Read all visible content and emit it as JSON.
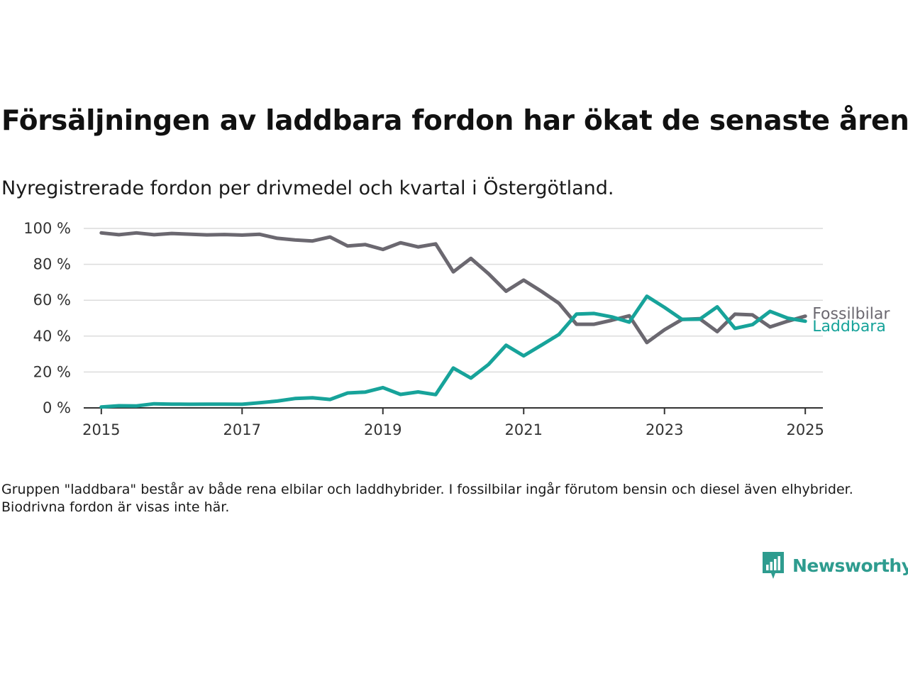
{
  "title": "Försäljningen av laddbara fordon har ökat de senaste åren",
  "subtitle": "Nyregistrerade fordon per drivmedel och kvartal i Östergötland.",
  "footnote": "Gruppen \"laddbara\" består av både rena elbilar och laddhybrider. I fossilbilar ingår förutom bensin och diesel även elhybrider. Biodrivna fordon är visas inte här.",
  "brand": {
    "name": "Newsworthy",
    "icon": "newsworthy-logo-icon",
    "color": "#2e9c8f"
  },
  "chart_data": {
    "type": "line",
    "title": "Försäljningen av laddbara fordon har ökat de senaste åren",
    "subtitle": "Nyregistrerade fordon per drivmedel och kvartal i Östergötland.",
    "xlabel": "",
    "ylabel": "",
    "xlim": [
      2014.75,
      2025.25
    ],
    "ylim": [
      0,
      100
    ],
    "grid": true,
    "x_ticks": [
      2015,
      2017,
      2019,
      2021,
      2023,
      2025
    ],
    "x_tick_labels": [
      "2015",
      "2017",
      "2019",
      "2021",
      "2023",
      "2025"
    ],
    "y_ticks": [
      0,
      20,
      40,
      60,
      80,
      100
    ],
    "y_tick_labels": [
      "0 %",
      "20 %",
      "40 %",
      "60 %",
      "80 %",
      "100 %"
    ],
    "x": [
      2015.0,
      2015.25,
      2015.5,
      2015.75,
      2016.0,
      2016.25,
      2016.5,
      2016.75,
      2017.0,
      2017.25,
      2017.5,
      2017.75,
      2018.0,
      2018.25,
      2018.5,
      2018.75,
      2019.0,
      2019.25,
      2019.5,
      2019.75,
      2020.0,
      2020.25,
      2020.5,
      2020.75,
      2021.0,
      2021.25,
      2021.5,
      2021.75,
      2022.0,
      2022.25,
      2022.5,
      2022.75,
      2023.0,
      2023.25,
      2023.5,
      2023.75,
      2024.0,
      2024.25,
      2024.5,
      2024.75,
      2025.0
    ],
    "series": [
      {
        "name": "Fossilbilar",
        "color": "#6b6870",
        "values": [
          97.5,
          96.5,
          97.5,
          96.5,
          97.2,
          96.8,
          96.4,
          96.6,
          96.3,
          96.7,
          94.5,
          93.6,
          93.0,
          95.2,
          90.2,
          91.0,
          88.3,
          92.0,
          89.7,
          91.4,
          75.8,
          83.3,
          74.8,
          65.0,
          71.2,
          65.0,
          58.3,
          46.6,
          46.6,
          48.8,
          51.3,
          36.4,
          43.5,
          49.3,
          49.7,
          42.5,
          52.2,
          51.8,
          45.1,
          48.3,
          51.1
        ]
      },
      {
        "name": "Laddbara",
        "color": "#17a39a",
        "values": [
          0.5,
          1.2,
          1.1,
          2.3,
          2.1,
          2.0,
          2.1,
          2.1,
          2.0,
          2.9,
          3.8,
          5.2,
          5.6,
          4.7,
          8.3,
          8.8,
          11.3,
          7.5,
          8.9,
          7.4,
          22.2,
          16.6,
          24.2,
          34.9,
          29.0,
          34.9,
          40.9,
          52.3,
          52.6,
          50.7,
          47.8,
          62.2,
          56.0,
          49.3,
          49.4,
          56.3,
          44.3,
          46.4,
          53.8,
          50.0,
          48.3
        ]
      }
    ],
    "legend": "end-labels"
  }
}
